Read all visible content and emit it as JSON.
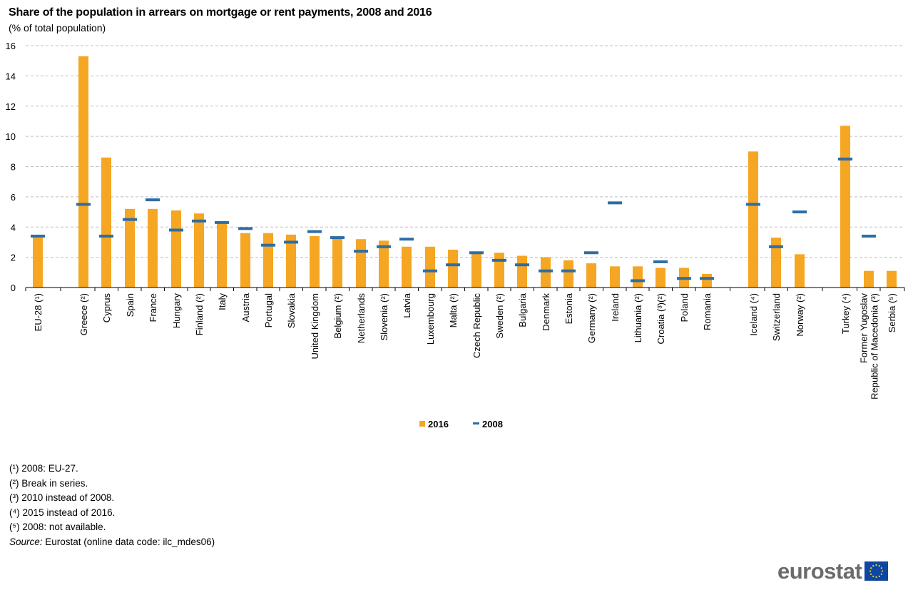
{
  "title": "Share of the population in arrears on mortgage or rent payments, 2008 and 2016",
  "subtitle": "(% of total population)",
  "colors": {
    "bar": "#F5A623",
    "marker": "#2E6DA4",
    "grid": "#BFBFBF",
    "axis": "#000000"
  },
  "chart_data": {
    "type": "bar",
    "ylim": [
      0,
      16
    ],
    "yticks": [
      0,
      2,
      4,
      6,
      8,
      10,
      12,
      14,
      16
    ],
    "grid": true,
    "legend_position": "bottom-center",
    "categories": [
      "EU-28 (¹)",
      "Greece (²)",
      "Cyprus",
      "Spain",
      "France",
      "Hungary",
      "Finland (²)",
      "Italy",
      "Austria",
      "Portugal",
      "Slovakia",
      "United Kingdom",
      "Belgium (²)",
      "Netherlands",
      "Slovenia (²)",
      "Latvia",
      "Luxembourg",
      "Malta (²)",
      "Czech Republic",
      "Sweden (²)",
      "Bulgaria",
      "Denmark",
      "Estonia",
      "Germany (²)",
      "Ireland",
      "Lithuania (²)",
      "Croatia (³)(²)",
      "Poland",
      "Romania",
      "Iceland (⁴)",
      "Switzerland",
      "Norway (²)",
      "Turkey (⁴)",
      "Former Yugoslav Republic of Macedonia (³)",
      "Serbia (⁵)"
    ],
    "category_labels": [
      [
        "EU-28 (¹)"
      ],
      [
        "Greece (²)"
      ],
      [
        "Cyprus"
      ],
      [
        "Spain"
      ],
      [
        "France"
      ],
      [
        "Hungary"
      ],
      [
        "Finland (²)"
      ],
      [
        "Italy"
      ],
      [
        "Austria"
      ],
      [
        "Portugal"
      ],
      [
        "Slovakia"
      ],
      [
        "United Kingdom"
      ],
      [
        "Belgium (²)"
      ],
      [
        "Netherlands"
      ],
      [
        "Slovenia (²)"
      ],
      [
        "Latvia"
      ],
      [
        "Luxembourg"
      ],
      [
        "Malta (²)"
      ],
      [
        "Czech Republic"
      ],
      [
        "Sweden (²)"
      ],
      [
        "Bulgaria"
      ],
      [
        "Denmark"
      ],
      [
        "Estonia"
      ],
      [
        "Germany (²)"
      ],
      [
        "Ireland"
      ],
      [
        "Lithuania (²)"
      ],
      [
        "Croatia (³)(²)"
      ],
      [
        "Poland"
      ],
      [
        "Romania"
      ],
      [
        "Iceland (⁴)"
      ],
      [
        "Switzerland"
      ],
      [
        "Norway (²)"
      ],
      [
        "Turkey (⁴)"
      ],
      [
        "Former Yugoslav",
        "Republic of Macedonia (³)"
      ],
      [
        "Serbia (⁵)"
      ]
    ],
    "series": [
      {
        "name": "2016",
        "kind": "bar",
        "values": [
          3.3,
          15.3,
          8.6,
          5.2,
          5.2,
          5.1,
          4.9,
          4.3,
          3.6,
          3.6,
          3.5,
          3.4,
          3.3,
          3.2,
          3.1,
          2.7,
          2.7,
          2.5,
          2.3,
          2.3,
          2.1,
          2.0,
          1.8,
          1.6,
          1.4,
          1.4,
          1.3,
          1.3,
          0.9,
          9.0,
          3.3,
          2.2,
          10.7,
          1.1,
          1.1
        ]
      },
      {
        "name": "2008",
        "kind": "marker",
        "values": [
          3.4,
          5.5,
          3.4,
          4.5,
          5.8,
          3.8,
          4.4,
          4.3,
          3.9,
          2.8,
          3.0,
          3.7,
          3.3,
          2.4,
          2.7,
          3.2,
          1.1,
          1.5,
          2.3,
          1.8,
          1.5,
          1.1,
          1.1,
          2.3,
          5.6,
          0.45,
          1.7,
          0.6,
          0.6,
          5.5,
          2.7,
          5.0,
          8.5,
          3.4,
          null
        ]
      }
    ]
  },
  "footnotes": [
    "(¹) 2008: EU-27.",
    "(²) Break in series.",
    "(³) 2010 instead of 2008.",
    "(⁴) 2015 instead of 2016.",
    "(⁵) 2008: not available."
  ],
  "source": {
    "label": "Source:",
    "text": " Eurostat (online data code: ilc_mdes06)"
  },
  "logo": {
    "text": "eurostat",
    "icon": "eu-flag-icon"
  }
}
